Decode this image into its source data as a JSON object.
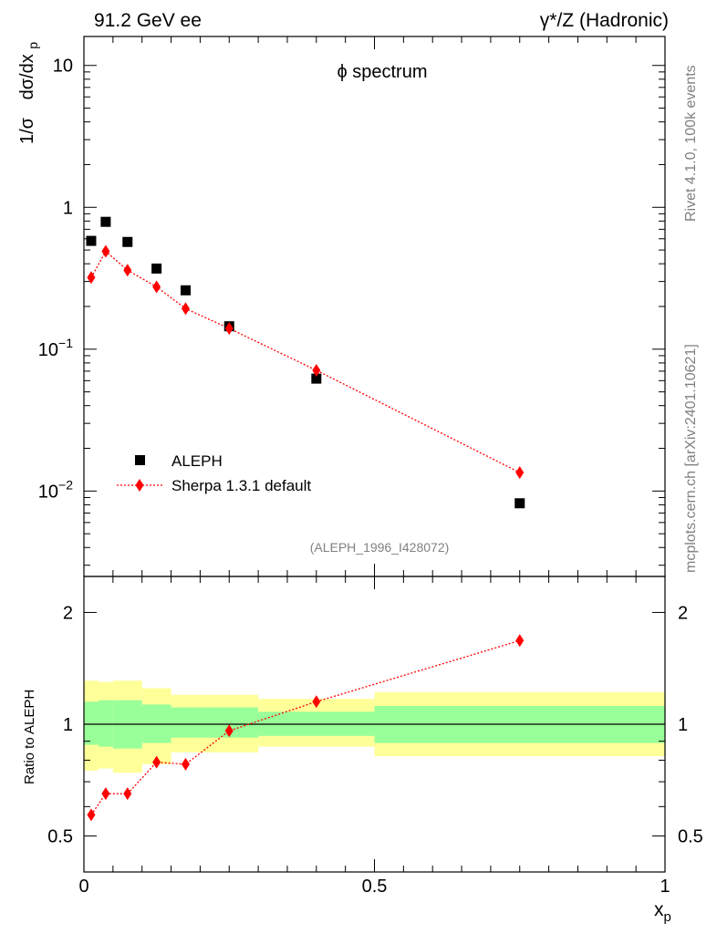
{
  "header": {
    "left": "91.2 GeV ee",
    "right": "γ*/Z (Hadronic)"
  },
  "side_labels": {
    "rivet": "Rivet 4.1.0,  100k events",
    "mcplots": "mcplots.cern.ch [arXiv:2401.10621]"
  },
  "colors": {
    "data": "#000000",
    "mc": "#ff0000",
    "band_inner": "#99ff99",
    "band_outer": "#ffff99"
  },
  "chart_data": [
    {
      "type": "scatter",
      "title": "ϕ spectrum",
      "ylabel_prefix": "1/σ",
      "ylabel_main": "dσ/dx",
      "ylabel_sub": "p",
      "yscale": "log",
      "ylim": [
        0.0025,
        16
      ],
      "xlim": [
        0,
        1
      ],
      "analysis_tag": "(ALEPH_1996_I428072)",
      "y_ticks": [
        {
          "value": 0.01,
          "base": "10",
          "exp": "−2"
        },
        {
          "value": 0.1,
          "base": "10",
          "exp": "−1"
        },
        {
          "value": 1,
          "base": "1",
          "exp": ""
        },
        {
          "value": 10,
          "base": "10",
          "exp": ""
        }
      ],
      "legend": {
        "placement": "lower-left",
        "entries": [
          "ALEPH",
          "Sherpa 1.3.1 default"
        ]
      },
      "series": [
        {
          "name": "ALEPH",
          "marker": "square",
          "x": [
            0.0125,
            0.0375,
            0.075,
            0.125,
            0.175,
            0.25,
            0.4,
            0.75
          ],
          "values": [
            0.58,
            0.79,
            0.57,
            0.37,
            0.26,
            0.145,
            0.062,
            0.0082
          ],
          "bin_edges": [
            0,
            0.025,
            0.05,
            0.1,
            0.15,
            0.2,
            0.3,
            0.5,
            1.0
          ]
        },
        {
          "name": "Sherpa 1.3.1 default",
          "marker": "diamond",
          "line": "dotted",
          "x": [
            0.0125,
            0.0375,
            0.075,
            0.125,
            0.175,
            0.25,
            0.4,
            0.75
          ],
          "values": [
            0.32,
            0.49,
            0.36,
            0.275,
            0.193,
            0.14,
            0.071,
            0.0135
          ]
        }
      ]
    },
    {
      "type": "scatter",
      "title": "",
      "ylabel": "Ratio to ALEPH",
      "xlabel_main": "x",
      "xlabel_sub": "p",
      "yscale": "log",
      "ylim": [
        0.4,
        2.5
      ],
      "xlim": [
        0,
        1
      ],
      "x_ticks": [
        {
          "value": 0,
          "label": "0"
        },
        {
          "value": 0.5,
          "label": "0.5"
        },
        {
          "value": 1,
          "label": "1"
        }
      ],
      "y_ticks": [
        {
          "value": 0.5,
          "label": "0.5"
        },
        {
          "value": 1,
          "label": "1"
        },
        {
          "value": 2,
          "label": "2"
        }
      ],
      "reference_line": 1,
      "bands": {
        "bin_edges": [
          0,
          0.025,
          0.05,
          0.1,
          0.15,
          0.2,
          0.3,
          0.5,
          1.0
        ],
        "inner_low": [
          0.88,
          0.87,
          0.86,
          0.89,
          0.92,
          0.92,
          0.93,
          0.89
        ],
        "inner_high": [
          1.15,
          1.16,
          1.16,
          1.13,
          1.11,
          1.11,
          1.08,
          1.12
        ],
        "outer_low": [
          0.75,
          0.76,
          0.74,
          0.78,
          0.84,
          0.84,
          0.87,
          0.82
        ],
        "outer_high": [
          1.31,
          1.3,
          1.31,
          1.25,
          1.2,
          1.2,
          1.17,
          1.22
        ]
      },
      "series": [
        {
          "name": "Sherpa 1.3.1 default",
          "marker": "diamond",
          "line": "dotted",
          "x": [
            0.0125,
            0.0375,
            0.075,
            0.125,
            0.175,
            0.25,
            0.4,
            0.75
          ],
          "values": [
            0.57,
            0.65,
            0.65,
            0.79,
            0.78,
            0.96,
            1.15,
            1.68
          ],
          "errors": [
            0.015,
            0.01,
            0.01,
            0.01,
            0.01,
            0.01,
            0.015,
            0.05
          ]
        }
      ]
    }
  ]
}
